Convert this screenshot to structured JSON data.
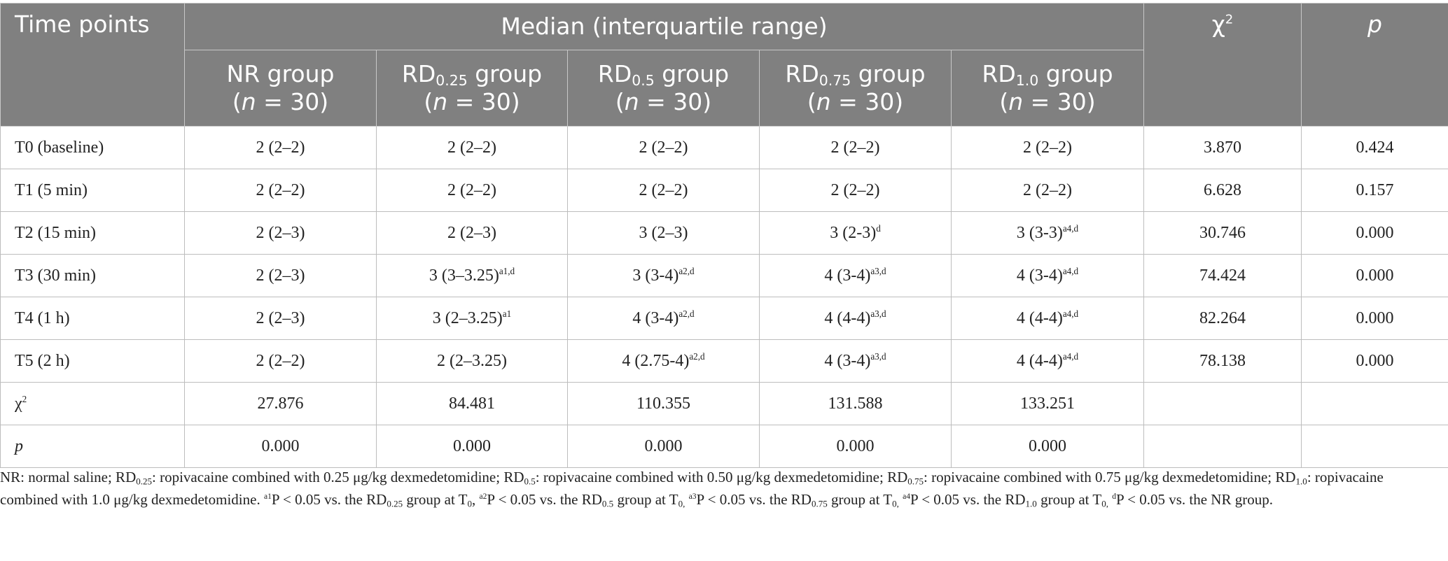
{
  "table": {
    "header": {
      "time_points": "Time points",
      "median_span": "Median (interquartile range)",
      "chi2": "χ",
      "chi2_sup": "2",
      "p": "p",
      "groups": [
        {
          "pre": "NR",
          "sub": "",
          "post": " group",
          "n_label": "n",
          "n_value": " = 30"
        },
        {
          "pre": "RD",
          "sub": "0.25",
          "post": " group",
          "n_label": "n",
          "n_value": " = 30"
        },
        {
          "pre": "RD",
          "sub": "0.5",
          "post": " group",
          "n_label": "n",
          "n_value": " = 30"
        },
        {
          "pre": "RD",
          "sub": "0.75",
          "post": " group",
          "n_label": "n",
          "n_value": " = 30"
        },
        {
          "pre": "RD",
          "sub": "1.0",
          "post": " group",
          "n_label": "n",
          "n_value": " = 30"
        }
      ]
    },
    "rows": [
      {
        "label": "T0 (baseline)",
        "cells": [
          {
            "v": "2 (2–2)",
            "s": ""
          },
          {
            "v": "2 (2–2)",
            "s": ""
          },
          {
            "v": "2 (2–2)",
            "s": ""
          },
          {
            "v": "2 (2–2)",
            "s": ""
          },
          {
            "v": "2 (2–2)",
            "s": ""
          }
        ],
        "chi2": "3.870",
        "p": "0.424"
      },
      {
        "label": "T1 (5 min)",
        "cells": [
          {
            "v": "2 (2–2)",
            "s": ""
          },
          {
            "v": "2 (2–2)",
            "s": ""
          },
          {
            "v": "2 (2–2)",
            "s": ""
          },
          {
            "v": "2 (2–2)",
            "s": ""
          },
          {
            "v": "2 (2–2)",
            "s": ""
          }
        ],
        "chi2": "6.628",
        "p": "0.157"
      },
      {
        "label": "T2 (15 min)",
        "cells": [
          {
            "v": "2 (2–3)",
            "s": ""
          },
          {
            "v": "2 (2–3)",
            "s": ""
          },
          {
            "v": "3 (2–3)",
            "s": ""
          },
          {
            "v": "3 (2-3)",
            "s": "d"
          },
          {
            "v": "3 (3-3)",
            "s": "a4,d"
          }
        ],
        "chi2": "30.746",
        "p": "0.000"
      },
      {
        "label": "T3 (30 min)",
        "cells": [
          {
            "v": "2 (2–3)",
            "s": ""
          },
          {
            "v": "3 (3–3.25)",
            "s": "a1,d"
          },
          {
            "v": "3 (3-4)",
            "s": "a2,d"
          },
          {
            "v": "4 (3-4)",
            "s": "a3,d"
          },
          {
            "v": "4 (3-4)",
            "s": "a4,d"
          }
        ],
        "chi2": "74.424",
        "p": "0.000"
      },
      {
        "label": "T4 (1 h)",
        "cells": [
          {
            "v": "2 (2–3)",
            "s": ""
          },
          {
            "v": "3 (2–3.25)",
            "s": "a1"
          },
          {
            "v": "4 (3-4)",
            "s": "a2,d"
          },
          {
            "v": "4 (4-4)",
            "s": "a3,d"
          },
          {
            "v": "4 (4-4)",
            "s": "a4,d"
          }
        ],
        "chi2": "82.264",
        "p": "0.000"
      },
      {
        "label": "T5 (2 h)",
        "cells": [
          {
            "v": "2 (2–2)",
            "s": ""
          },
          {
            "v": "2 (2–3.25)",
            "s": ""
          },
          {
            "v": "4 (2.75-4)",
            "s": "a2,d"
          },
          {
            "v": "4 (3-4)",
            "s": "a3,d"
          },
          {
            "v": "4 (4-4)",
            "s": "a4,d"
          }
        ],
        "chi2": "78.138",
        "p": "0.000"
      }
    ],
    "chi2_row": {
      "label": "χ",
      "label_sup": "2",
      "values": [
        "27.876",
        "84.481",
        "110.355",
        "131.588",
        "133.251"
      ]
    },
    "p_row": {
      "label": "p",
      "values": [
        "0.000",
        "0.000",
        "0.000",
        "0.000",
        "0.000"
      ]
    }
  },
  "footnote": {
    "parts": [
      {
        "t": "NR: normal saline; RD"
      },
      {
        "sub": "0.25"
      },
      {
        "t": ": ropivacaine combined with 0.25 μg/kg dexmedetomidine; RD"
      },
      {
        "sub": "0.5"
      },
      {
        "t": ": ropivacaine combined with 0.50 μg/kg dexmedetomidine; RD"
      },
      {
        "sub": "0.75"
      },
      {
        "t": ": ropivacaine combined with 0.75 μg/kg dexmedetomidine; RD"
      },
      {
        "sub": "1.0"
      },
      {
        "t": ": ropivacaine combined with 1.0 μg/kg dexmedetomidine. "
      },
      {
        "sup": "a1"
      },
      {
        "t": "P < 0.05 vs. the RD"
      },
      {
        "sub": "0.25"
      },
      {
        "t": " group at T"
      },
      {
        "sub": "0"
      },
      {
        "t": ", "
      },
      {
        "sup": "a2"
      },
      {
        "t": "P < 0.05 vs. the RD"
      },
      {
        "sub": "0.5"
      },
      {
        "t": " group at T"
      },
      {
        "sub": "0,"
      },
      {
        "t": " "
      },
      {
        "sup": "a3"
      },
      {
        "t": "P < 0.05 vs. the RD"
      },
      {
        "sub": "0.75"
      },
      {
        "t": " group at T"
      },
      {
        "sub": "0,"
      },
      {
        "t": " "
      },
      {
        "sup": "a4"
      },
      {
        "t": "P < 0.05 vs. the RD"
      },
      {
        "sub": "1.0"
      },
      {
        "t": " group at T"
      },
      {
        "sub": "0,"
      },
      {
        "t": " "
      },
      {
        "sup": "d"
      },
      {
        "t": "P < 0.05 vs. the NR group."
      }
    ]
  }
}
